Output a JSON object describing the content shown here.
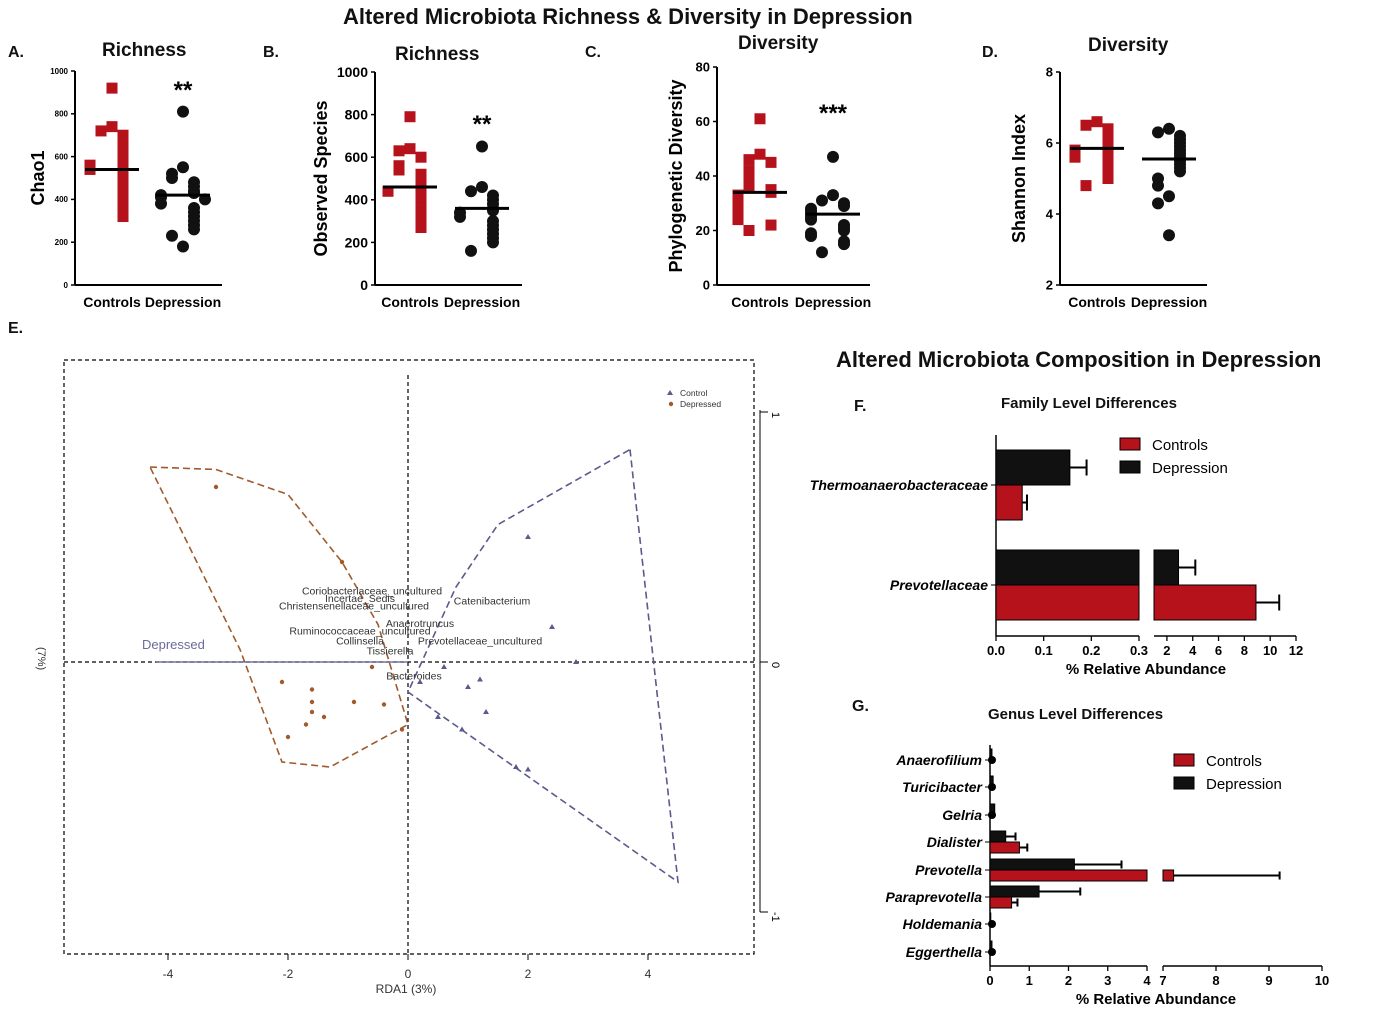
{
  "headers": {
    "top": "Altered Microbiota Richness & Diversity in Depression",
    "composition": "Altered Microbiota Composition in Depression"
  },
  "panel_labels": {
    "a": "A.",
    "b": "B.",
    "c": "C.",
    "d": "D.",
    "e": "E.",
    "f": "F.",
    "g": "G."
  },
  "colors": {
    "control": "#b5121b",
    "depression": "#111111",
    "control_pcoa": "#a05a2c",
    "depression_pcoa": "#5a5a8c"
  },
  "chart_data": [
    {
      "id": "A",
      "type": "scatter",
      "title": "Richness",
      "ylabel": "Chao1",
      "categories": [
        "Controls",
        "Depression"
      ],
      "ylim": [
        0,
        1000
      ],
      "yticks": [
        "0",
        "200",
        "400",
        "600",
        "800",
        "1000"
      ],
      "significance": "**",
      "series": [
        {
          "name": "Controls",
          "mean": 540,
          "values": [
            920,
            740,
            720,
            700,
            680,
            660,
            640,
            620,
            600,
            580,
            570,
            560,
            540,
            520,
            500,
            480,
            460,
            440,
            420,
            400,
            380,
            360,
            340,
            320
          ]
        },
        {
          "name": "Depression",
          "mean": 420,
          "values": [
            810,
            550,
            520,
            500,
            480,
            460,
            440,
            430,
            420,
            410,
            400,
            380,
            360,
            340,
            320,
            300,
            280,
            260,
            230,
            180
          ]
        }
      ]
    },
    {
      "id": "B",
      "type": "scatter",
      "title": "Richness",
      "ylabel": "Observed Species",
      "categories": [
        "Controls",
        "Depression"
      ],
      "ylim": [
        0,
        1000
      ],
      "yticks": [
        "0",
        "200",
        "400",
        "600",
        "800",
        "1000"
      ],
      "significance": "**",
      "series": [
        {
          "name": "Controls",
          "mean": 460,
          "values": [
            790,
            640,
            630,
            600,
            560,
            540,
            520,
            500,
            480,
            470,
            450,
            440,
            420,
            400,
            380,
            360,
            340,
            320,
            300,
            280,
            270
          ]
        },
        {
          "name": "Depression",
          "mean": 360,
          "values": [
            650,
            460,
            440,
            420,
            400,
            380,
            360,
            350,
            340,
            320,
            300,
            280,
            260,
            240,
            220,
            200,
            160
          ]
        }
      ]
    },
    {
      "id": "C",
      "type": "scatter",
      "title": "Diversity",
      "ylabel": "Phylogenetic Diversity",
      "categories": [
        "Controls",
        "Depression"
      ],
      "ylim": [
        0,
        80
      ],
      "yticks": [
        "0",
        "20",
        "40",
        "60",
        "80"
      ],
      "significance": "***",
      "series": [
        {
          "name": "Controls",
          "mean": 34,
          "values": [
            61,
            48,
            46,
            45,
            42,
            40,
            38,
            36,
            35,
            34,
            33,
            32,
            31,
            30,
            29,
            28,
            27,
            26,
            25,
            24,
            22,
            20
          ]
        },
        {
          "name": "Depression",
          "mean": 26,
          "values": [
            47,
            33,
            31,
            30,
            29,
            28,
            27,
            26,
            25,
            24,
            22,
            21,
            20,
            19,
            18,
            16,
            15,
            12
          ]
        }
      ]
    },
    {
      "id": "D",
      "type": "scatter",
      "title": "Diversity",
      "ylabel": "Shannon Index",
      "categories": [
        "Controls",
        "Depression"
      ],
      "ylim": [
        2,
        8
      ],
      "yticks": [
        "2",
        "4",
        "6",
        "8"
      ],
      "significance": "",
      "series": [
        {
          "name": "Controls",
          "mean": 5.85,
          "values": [
            6.6,
            6.5,
            6.4,
            6.3,
            6.2,
            6.1,
            6.0,
            5.9,
            5.8,
            5.8,
            5.7,
            5.6,
            5.5,
            5.4,
            5.3,
            5.2,
            5.1,
            5.0,
            4.8
          ]
        },
        {
          "name": "Depression",
          "mean": 5.55,
          "values": [
            6.4,
            6.3,
            6.2,
            6.1,
            6.0,
            5.9,
            5.8,
            5.7,
            5.6,
            5.5,
            5.4,
            5.3,
            5.2,
            5.0,
            4.8,
            4.5,
            4.3,
            3.4
          ]
        }
      ]
    },
    {
      "id": "E",
      "type": "scatter",
      "xlabel": "RDA1   (3%)",
      "ylabel": "(7%)",
      "xlim": [
        -5.0,
        5.8
      ],
      "ylim": [
        -1.1,
        1.1
      ],
      "xticks": [
        "-4",
        "-2",
        "0",
        "2",
        "4"
      ],
      "yticks_right": [
        "1",
        "0",
        "-1"
      ],
      "legend": [
        "Control",
        "Depressed"
      ],
      "vector_label": "Depressed",
      "vector_end": [
        -4.2,
        0.0
      ],
      "depressed_hull": [
        [
          -4.3,
          0.78
        ],
        [
          -3.2,
          0.77
        ],
        [
          -2.0,
          0.67
        ],
        [
          -1.1,
          0.4
        ],
        [
          -0.5,
          0.15
        ],
        [
          0.0,
          -0.25
        ],
        [
          -1.3,
          -0.42
        ],
        [
          -2.1,
          -0.4
        ],
        [
          -2.8,
          0.05
        ]
      ],
      "control_hull": [
        [
          3.7,
          0.85
        ],
        [
          4.5,
          -0.88
        ],
        [
          0.0,
          -0.12
        ],
        [
          0.8,
          0.3
        ],
        [
          1.5,
          0.55
        ]
      ],
      "depressed_points": [
        [
          -3.2,
          0.7
        ],
        [
          -1.1,
          0.4
        ],
        [
          -2.1,
          -0.08
        ],
        [
          -1.6,
          -0.11
        ],
        [
          -1.6,
          -0.16
        ],
        [
          -1.6,
          -0.2
        ],
        [
          -1.4,
          -0.22
        ],
        [
          -0.9,
          -0.16
        ],
        [
          -0.4,
          -0.17
        ],
        [
          -0.1,
          -0.27
        ],
        [
          -1.7,
          -0.25
        ],
        [
          -2.0,
          -0.3
        ],
        [
          -0.6,
          -0.02
        ]
      ],
      "control_points": [
        [
          2.0,
          0.5
        ],
        [
          2.4,
          0.14
        ],
        [
          2.8,
          0.0
        ],
        [
          0.2,
          -0.08
        ],
        [
          0.6,
          -0.02
        ],
        [
          1.0,
          -0.1
        ],
        [
          1.2,
          -0.07
        ],
        [
          0.5,
          -0.22
        ],
        [
          1.3,
          -0.2
        ],
        [
          1.8,
          -0.42
        ],
        [
          2.0,
          -0.43
        ],
        [
          0.9,
          -0.27
        ]
      ],
      "taxa": [
        {
          "label": "Coriobacteriaceae_uncultured",
          "x": -0.6,
          "y": 0.27
        },
        {
          "label": "Incertae_Sedis",
          "x": -0.8,
          "y": 0.24
        },
        {
          "label": "Catenibacterium",
          "x": 1.4,
          "y": 0.23
        },
        {
          "label": "Christensenellaceae_uncultured",
          "x": -0.9,
          "y": 0.21
        },
        {
          "label": "Anaerotruncus",
          "x": 0.2,
          "y": 0.14
        },
        {
          "label": "Ruminococcaceae_uncultured",
          "x": -0.8,
          "y": 0.11
        },
        {
          "label": "Collinsella",
          "x": -0.8,
          "y": 0.07
        },
        {
          "label": "Prevotellaceae_uncultured",
          "x": 1.2,
          "y": 0.07
        },
        {
          "label": "Tissierella",
          "x": -0.3,
          "y": 0.03
        },
        {
          "label": "Bacteroides",
          "x": 0.1,
          "y": -0.07
        }
      ]
    },
    {
      "id": "F",
      "type": "bar",
      "title": "Family Level Differences",
      "xlabel": "% Relative Abundance",
      "categories": [
        "Thermoanaerobacteraceae",
        "Prevotellaceae"
      ],
      "xticks_left": [
        "0.0",
        "0.1",
        "0.2",
        "0.3"
      ],
      "xticks_right": [
        "2",
        "4",
        "6",
        "8",
        "10",
        "12"
      ],
      "series": [
        {
          "name": "Controls",
          "values": [
            0.055,
            8.9
          ],
          "errors": [
            0.01,
            1.8
          ]
        },
        {
          "name": "Depression",
          "values": [
            0.155,
            2.9
          ],
          "errors": [
            0.035,
            1.3
          ]
        }
      ]
    },
    {
      "id": "G",
      "type": "bar",
      "title": "Genus Level Differences",
      "xlabel": "% Relative Abundance",
      "categories": [
        "Anaerofilium",
        "Turicibacter",
        "Gelria",
        "Dialister",
        "Prevotella",
        "Paraprevotella",
        "Holdemania",
        "Eggerthella"
      ],
      "xticks_left": [
        "0",
        "1",
        "2",
        "3",
        "4"
      ],
      "xticks_right": [
        "7",
        "8",
        "9",
        "10"
      ],
      "series": [
        {
          "name": "Controls",
          "values": [
            0.0,
            0.0,
            0.0,
            0.75,
            7.2,
            0.55,
            0.0,
            0.0
          ],
          "errors": [
            0,
            0,
            0,
            0.2,
            2.0,
            0.15,
            0,
            0
          ]
        },
        {
          "name": "Depression",
          "values": [
            0.05,
            0.08,
            0.12,
            0.4,
            2.15,
            1.25,
            0.02,
            0.05
          ],
          "errors": [
            0,
            0,
            0,
            0.25,
            1.2,
            1.05,
            0,
            0
          ]
        }
      ]
    }
  ]
}
